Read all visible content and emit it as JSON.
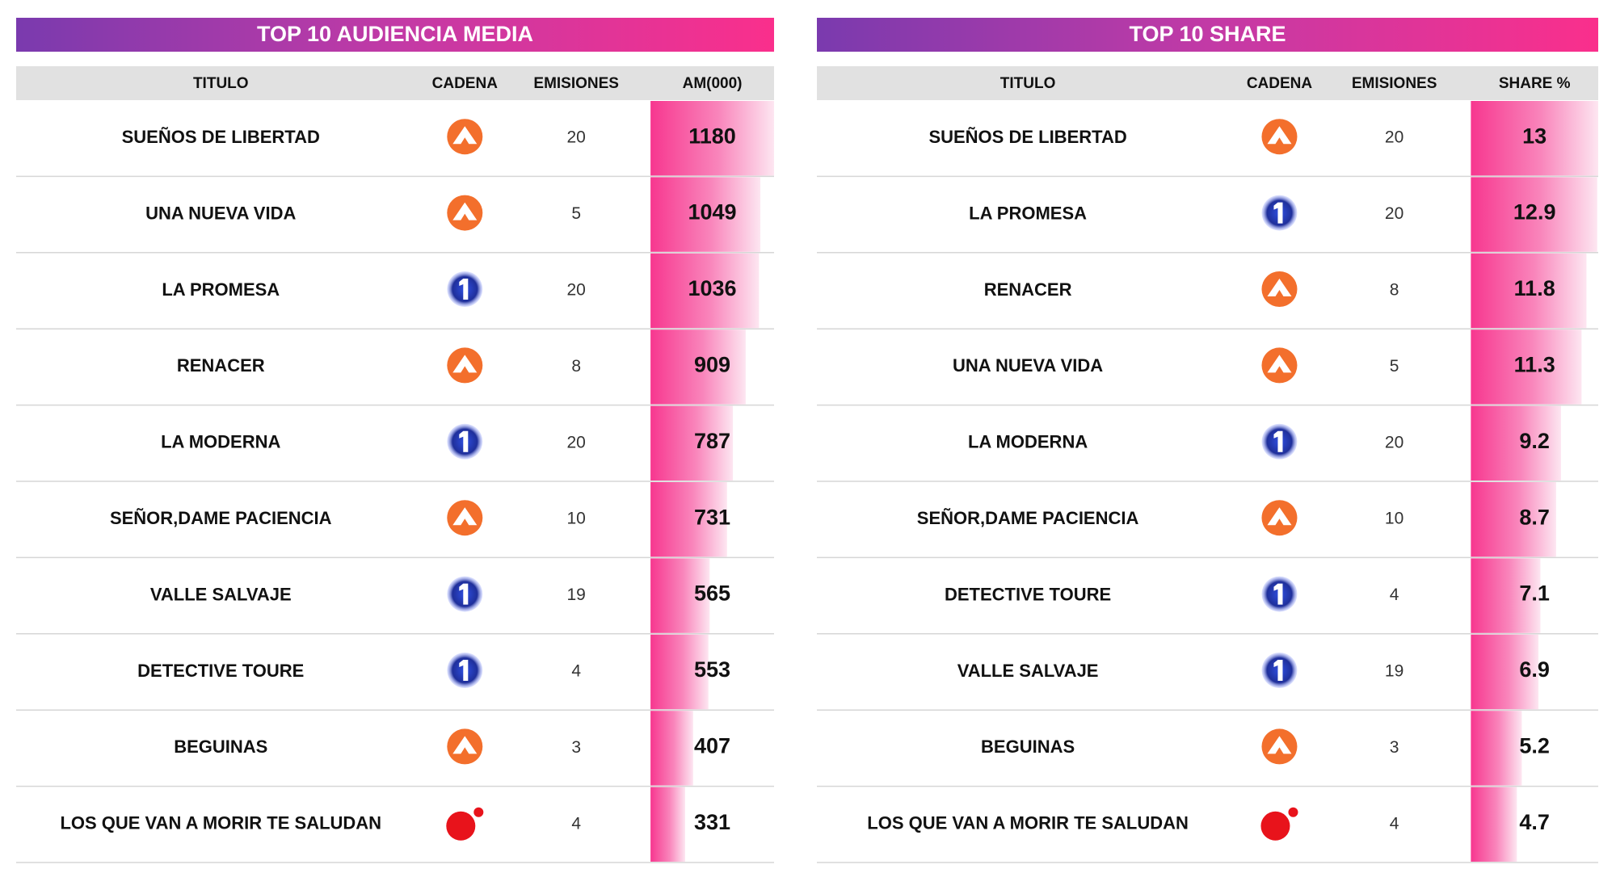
{
  "tables": [
    {
      "title": "TOP 10 AUDIENCIA MEDIA",
      "headers": [
        "TITULO",
        "CADENA",
        "EMISIONES",
        "AM(000)"
      ],
      "rows": [
        {
          "titulo": "SUEÑOS DE LIBERTAD",
          "emisiones": 20,
          "value": 1180
        },
        {
          "titulo": "UNA NUEVA VIDA",
          "emisiones": 5,
          "value": 1049
        },
        {
          "titulo": "LA PROMESA",
          "emisiones": 20,
          "value": 1036
        },
        {
          "titulo": "RENACER",
          "emisiones": 8,
          "value": 909
        },
        {
          "titulo": "LA MODERNA",
          "emisiones": 20,
          "value": 787
        },
        {
          "titulo": "SEÑOR,DAME PACIENCIA",
          "emisiones": 10,
          "value": 731
        },
        {
          "titulo": "VALLE SALVAJE",
          "emisiones": 19,
          "value": 565
        },
        {
          "titulo": "DETECTIVE TOURE",
          "emisiones": 4,
          "value": 553
        },
        {
          "titulo": "BEGUINAS",
          "emisiones": 3,
          "value": 407
        },
        {
          "titulo": "LOS QUE VAN A MORIR TE SALUDAN",
          "emisiones": 4,
          "value": 331
        }
      ]
    },
    {
      "title": "TOP 10 SHARE",
      "headers": [
        "TITULO",
        "CADENA",
        "EMISIONES",
        "SHARE %"
      ],
      "rows": [
        {
          "titulo": "SUEÑOS DE LIBERTAD",
          "emisiones": 20,
          "value": 13
        },
        {
          "titulo": "LA PROMESA",
          "emisiones": 20,
          "value": 12.9
        },
        {
          "titulo": "RENACER",
          "emisiones": 8,
          "value": 11.8
        },
        {
          "titulo": "UNA NUEVA VIDA",
          "emisiones": 5,
          "value": 11.3
        },
        {
          "titulo": "LA MODERNA",
          "emisiones": 20,
          "value": 9.2
        },
        {
          "titulo": "SEÑOR,DAME PACIENCIA",
          "emisiones": 10,
          "value": 8.7
        },
        {
          "titulo": "DETECTIVE TOURE",
          "emisiones": 4,
          "value": 7.1
        },
        {
          "titulo": "VALLE SALVAJE",
          "emisiones": 19,
          "value": 6.9
        },
        {
          "titulo": "BEGUINAS",
          "emisiones": 3,
          "value": 5.2
        },
        {
          "titulo": "LOS QUE VAN A MORIR TE SALUDAN",
          "emisiones": 4,
          "value": 4.7
        }
      ]
    }
  ]
}
